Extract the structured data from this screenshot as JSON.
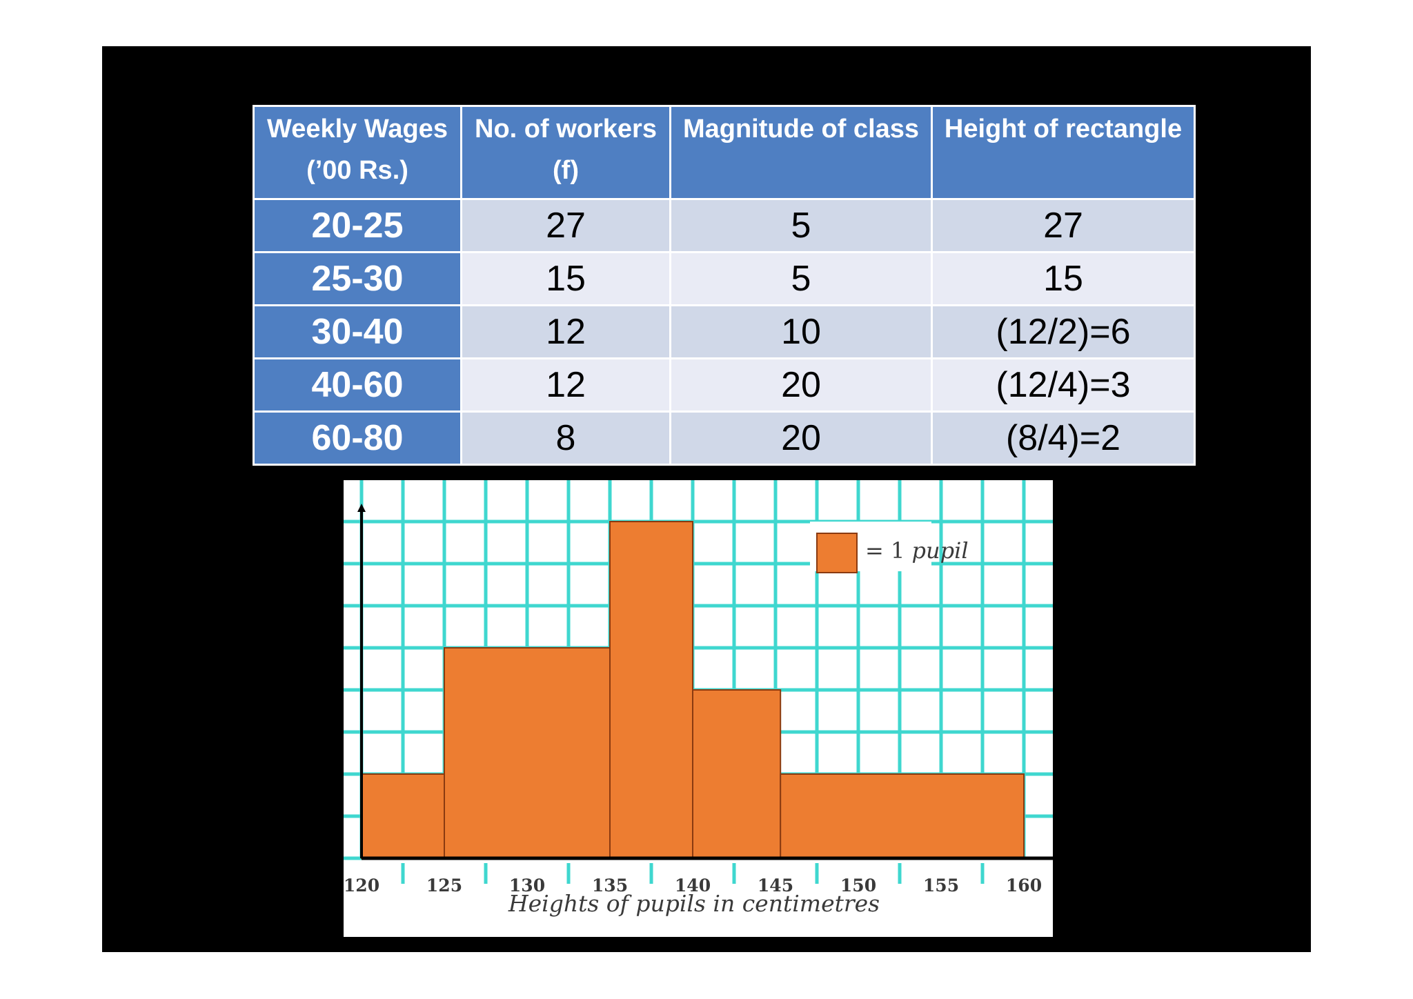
{
  "table": {
    "headers": [
      {
        "line1": "Weekly Wages",
        "line2": "(’00 Rs.)"
      },
      {
        "line1": "No. of workers",
        "line2": "(f)"
      },
      {
        "line1": "Magnitude of class",
        "line2": ""
      },
      {
        "line1": "Height of rectangle",
        "line2": ""
      }
    ],
    "rows": [
      {
        "wages": "20-25",
        "workers": "27",
        "magnitude": "5",
        "height": "27"
      },
      {
        "wages": "25-30",
        "workers": "15",
        "magnitude": "5",
        "height": "15"
      },
      {
        "wages": "30-40",
        "workers": "12",
        "magnitude": "10",
        "height": "(12/2)=6"
      },
      {
        "wages": "40-60",
        "workers": "12",
        "magnitude": "20",
        "height": "(12/4)=3"
      },
      {
        "wages": "60-80",
        "workers": "8",
        "magnitude": "20",
        "height": "(8/4)=2"
      }
    ]
  },
  "chart_data": {
    "type": "bar",
    "histogram": true,
    "xlabel": "Heights of pupils in centimetres",
    "ylabel": "",
    "x_ticks": [
      "120",
      "125",
      "130",
      "135",
      "140",
      "145",
      "150",
      "155",
      "160"
    ],
    "xlim": [
      120,
      160
    ],
    "ylim": [
      0,
      8
    ],
    "grid": true,
    "bins": [
      {
        "x0": 120,
        "x1": 125,
        "value": 2
      },
      {
        "x0": 125,
        "x1": 135,
        "value": 5
      },
      {
        "x0": 135,
        "x1": 140,
        "value": 8
      },
      {
        "x0": 140,
        "x1": 145.3,
        "value": 4
      },
      {
        "x0": 145.3,
        "x1": 160,
        "value": 2
      }
    ],
    "legend": {
      "equals": "= 1",
      "unit": "pupil",
      "position": "top-right"
    },
    "colors": {
      "bar": "#ed7d31",
      "grid": "#3fd7cf",
      "axis": "#000000"
    }
  }
}
